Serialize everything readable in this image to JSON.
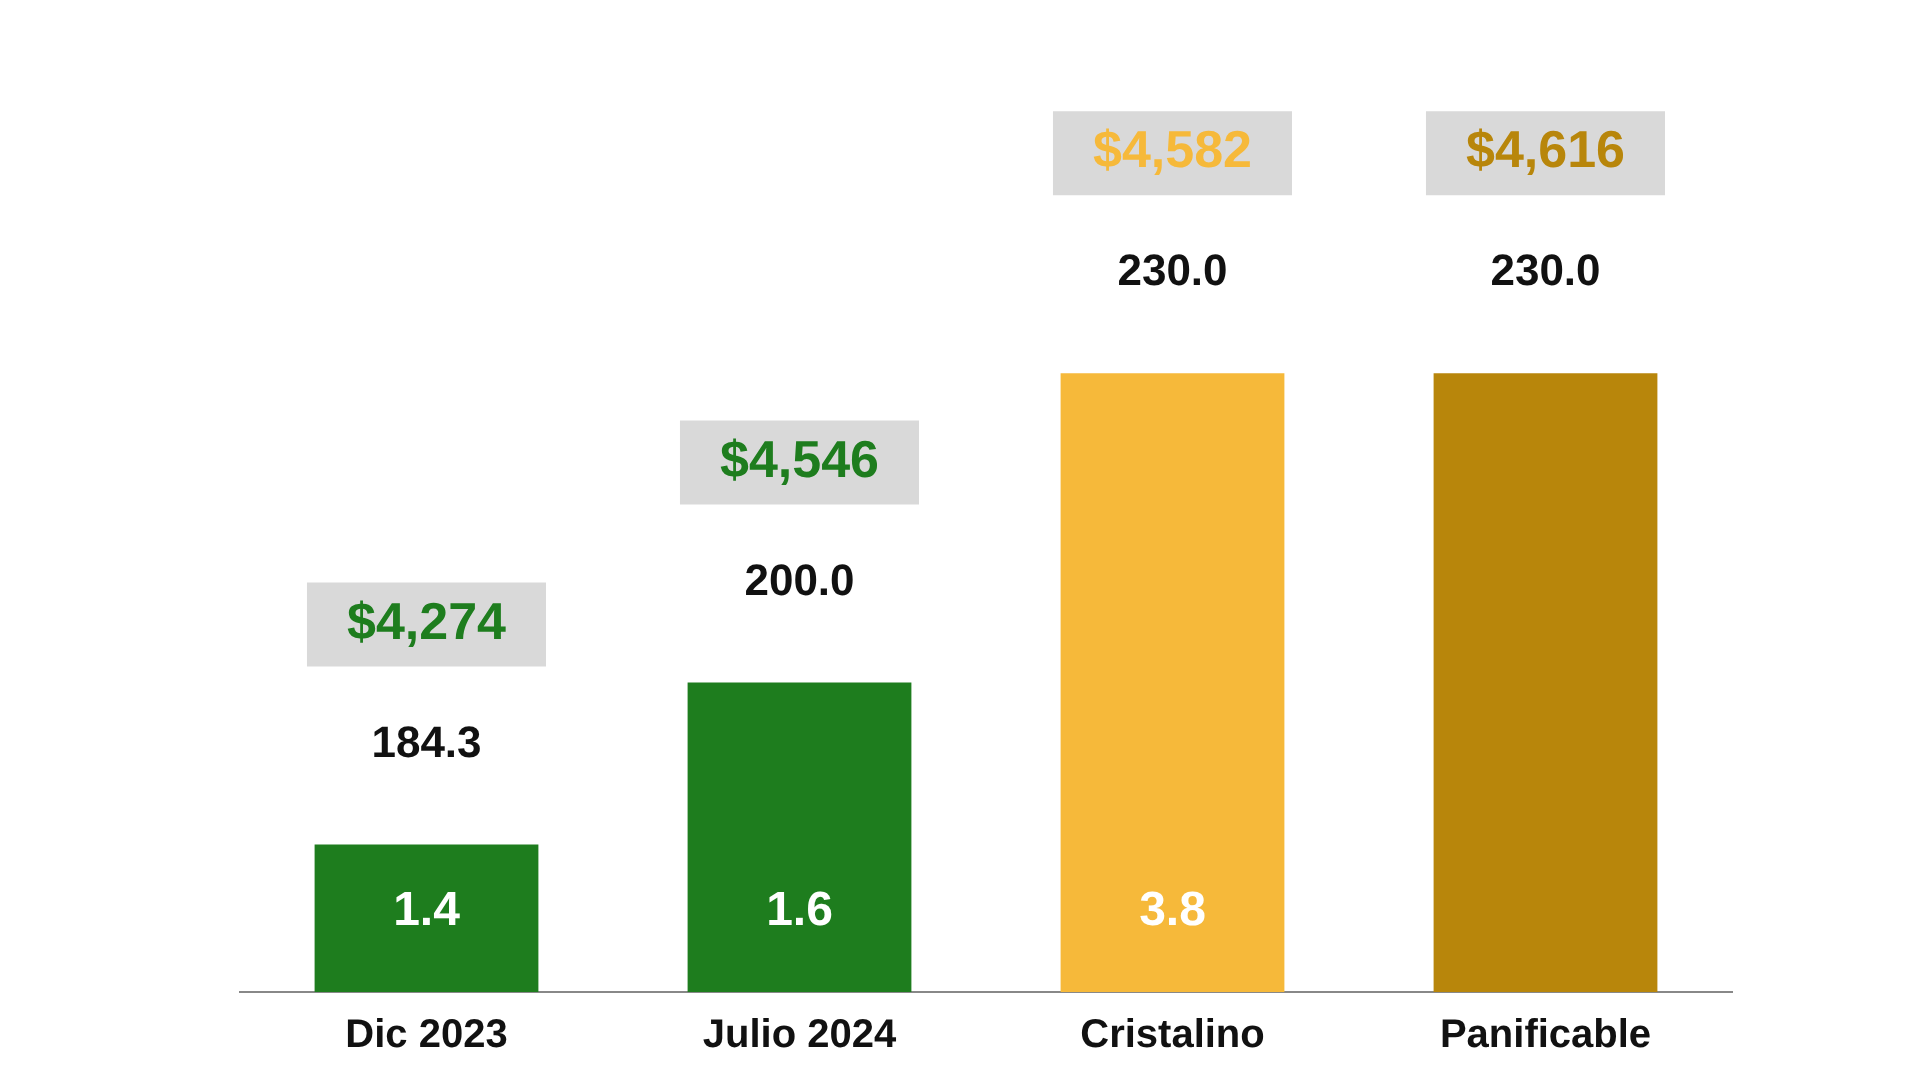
{
  "chart_data": {
    "type": "bar",
    "categories": [
      "Dic 2023",
      "Julio 2024",
      "Cristalino",
      "Panificable"
    ],
    "values": [
      184.3,
      200.0,
      230.0,
      230.0
    ],
    "value_labels": [
      "184.3",
      "200.0",
      "230.0",
      "230.0"
    ],
    "colors": [
      "#1e7d1e",
      "#1e7d1e",
      "#f6b93a",
      "#b8860b"
    ],
    "tick_labels": "x",
    "grid": false,
    "legend": false,
    "annotations": [
      "$4,274",
      "$4,546",
      "$4,582",
      "$4,616",
      "1.4",
      "1.6",
      "3.8"
    ]
  }
}
